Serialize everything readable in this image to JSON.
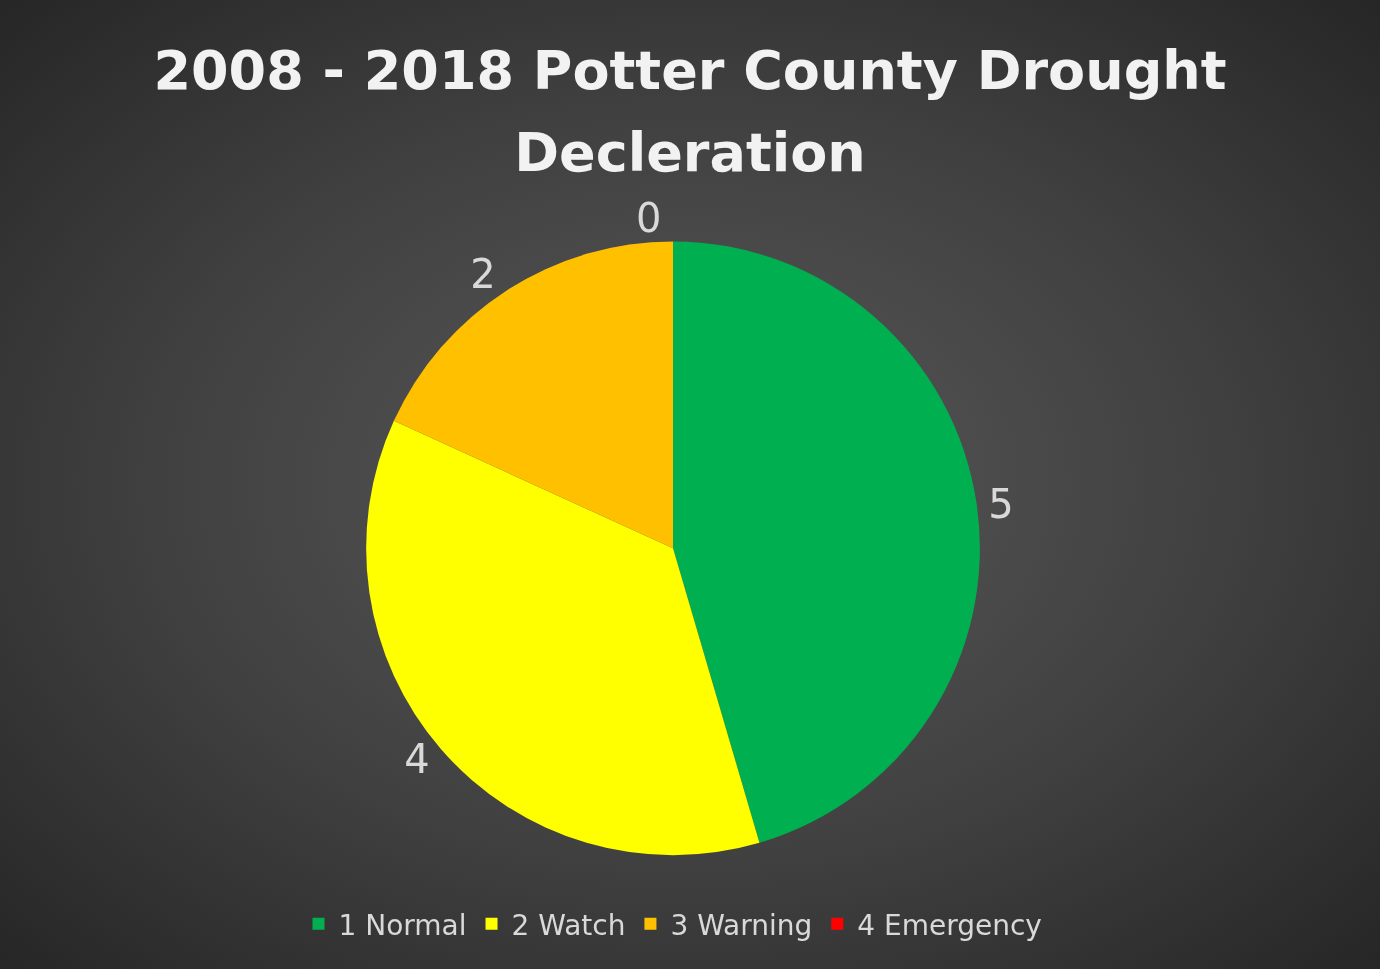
{
  "chart_data": {
    "type": "pie",
    "title": "2008 - 2018 Potter County Drought Decleration",
    "categories": [
      "1 Normal",
      "2 Watch",
      "3 Warning",
      "4 Emergency"
    ],
    "values": [
      5,
      4,
      2,
      0
    ],
    "colors": [
      "#00b050",
      "#ffff00",
      "#ffc000",
      "#ff0000"
    ],
    "value_labels": [
      "5",
      "4",
      "2",
      "0"
    ],
    "legend": "bottom"
  }
}
